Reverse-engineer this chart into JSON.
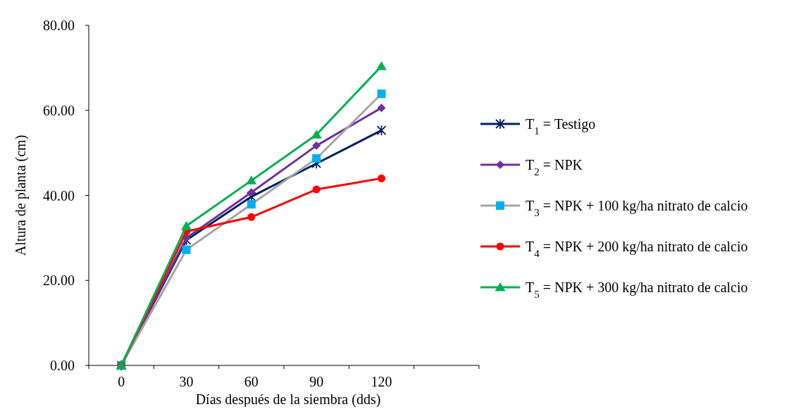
{
  "chart_data": {
    "type": "line",
    "xlabel": "Días después de la siembra (dds)",
    "ylabel": "Altura de planta (cm)",
    "categories": [
      "0",
      "30",
      "60",
      "90",
      "120",
      null
    ],
    "ylim": [
      0,
      80
    ],
    "yticks": [
      {
        "value": 0,
        "label": "0.00"
      },
      {
        "value": 20,
        "label": "20.00"
      },
      {
        "value": 40,
        "label": "40.00"
      },
      {
        "value": 60,
        "label": "60.00"
      },
      {
        "value": 80,
        "label": "80.00"
      }
    ],
    "grid": false,
    "legend": "right",
    "series": [
      {
        "name": "T$_{1}$ = Testigo",
        "color": "#002060",
        "marker": "cross",
        "values": [
          0,
          29.5,
          39.7,
          47.5,
          55.3,
          null
        ]
      },
      {
        "name": "T$_{2}$ = NPK",
        "color": "#7030a0",
        "marker": "diamond",
        "values": [
          0,
          30.0,
          40.7,
          51.7,
          60.6,
          null
        ]
      },
      {
        "name": "T$_{3}$ = NPK + 100 kg/ha nitrato de calcio",
        "color": "#a6a6a6",
        "colors": [
          "#00b0f0",
          "#00b0f0",
          "#00b0f0",
          "#00b0f0",
          "#00b0f0",
          null
        ],
        "marker": "square",
        "values": [
          0,
          27.2,
          37.9,
          48.7,
          63.9,
          null
        ]
      },
      {
        "name": "T$_{4}$ = NPK + 200 kg/ha nitrato de calcio",
        "color": "#ff0000",
        "marker": "circle",
        "values": [
          0,
          31.5,
          34.9,
          41.4,
          44.0,
          null
        ]
      },
      {
        "name": "T$_{5}$ = NPK + 300 kg/ha nitrato de calcio",
        "color": "#00b050",
        "marker": "triangle",
        "values": [
          0,
          32.8,
          43.5,
          54.3,
          70.4,
          null
        ]
      }
    ]
  }
}
